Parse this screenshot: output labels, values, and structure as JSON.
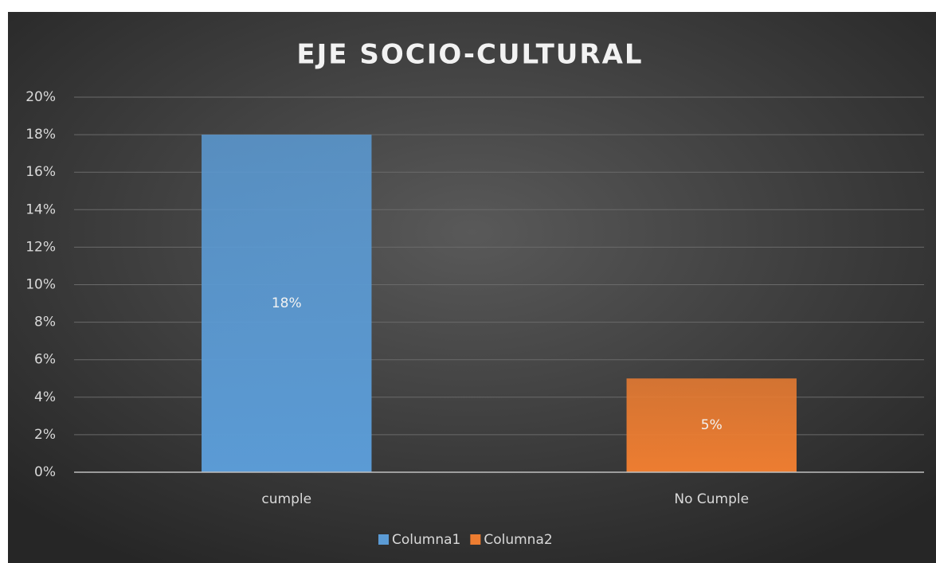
{
  "chart_data": {
    "type": "bar",
    "title": "EJE SOCIO-CULTURAL",
    "categories": [
      "cumple",
      "No Cumple"
    ],
    "series": [
      {
        "name": "Columna1",
        "color": "#5b9bd5",
        "values": [
          18,
          null
        ],
        "value_labels": [
          "18%",
          null
        ]
      },
      {
        "name": "Columna2",
        "color": "#ed7d31",
        "values": [
          null,
          5
        ],
        "value_labels": [
          null,
          "5%"
        ]
      }
    ],
    "ylim": [
      0,
      20
    ],
    "yticks": [
      {
        "value": 0,
        "label": "0%"
      },
      {
        "value": 2,
        "label": "2%"
      },
      {
        "value": 4,
        "label": "4%"
      },
      {
        "value": 6,
        "label": "6%"
      },
      {
        "value": 8,
        "label": "8%"
      },
      {
        "value": 10,
        "label": "10%"
      },
      {
        "value": 12,
        "label": "12%"
      },
      {
        "value": 14,
        "label": "14%"
      },
      {
        "value": 16,
        "label": "16%"
      },
      {
        "value": 18,
        "label": "18%"
      },
      {
        "value": 20,
        "label": "20%"
      }
    ],
    "grid": true,
    "legend": "bottom"
  }
}
